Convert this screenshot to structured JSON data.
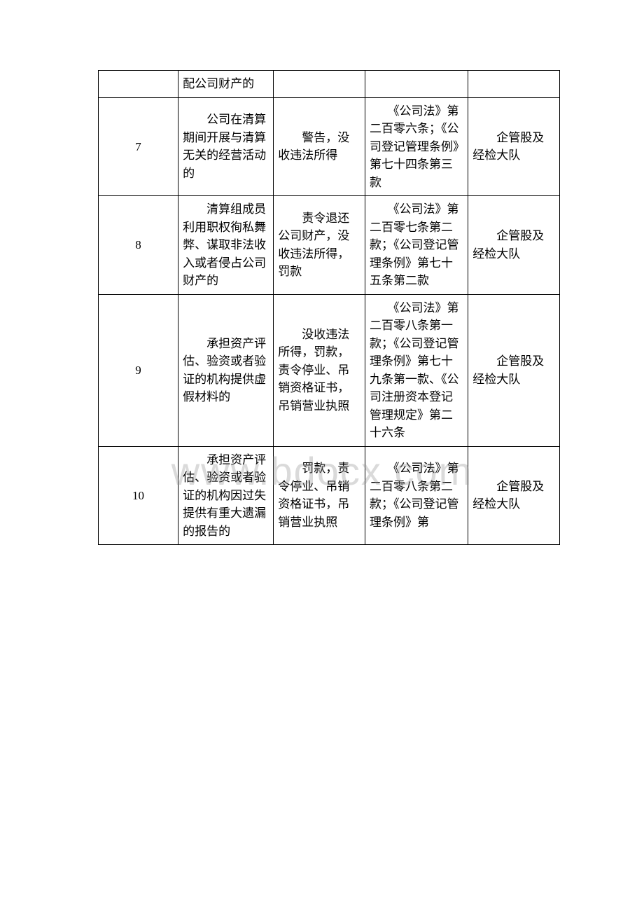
{
  "watermark": "www.bdocx.com",
  "table": {
    "rows": [
      {
        "num": "",
        "act": "配公司财产的",
        "penalty": "",
        "basis": "",
        "dept": ""
      },
      {
        "num": "7",
        "act": "　　公司在清算期间开展与清算无关的经营活动的",
        "penalty": "　　警告，没收违法所得",
        "basis": "　　《公司法》第二百零六条；《公司登记管理条例》第七十四条第三款",
        "dept": "　　企管股及经检大队"
      },
      {
        "num": "8",
        "act": "　　清算组成员利用职权徇私舞弊、谋取非法收入或者侵占公司财产的",
        "penalty": "　　责令退还公司财产，没收违法所得，罚款",
        "basis": "　　《公司法》第二百零七条第二款；《公司登记管理条例》第七十五条第二款",
        "dept": "　　企管股及经检大队"
      },
      {
        "num": "9",
        "act": "　　承担资产评估、验资或者验证的机构提供虚假材料的",
        "penalty": "　　没收违法所得，罚款，责令停业、吊销资格证书，吊销营业执照",
        "basis": "　　《公司法》第二百零八条第一款；《公司登记管理条例》第七十九条第一款、《公司注册资本登记管理规定》第二十六条",
        "dept": "　　企管股及经检大队"
      },
      {
        "num": "10",
        "act": "　　承担资产评估、验资或者验证的机构因过失提供有重大遗漏的报告的",
        "penalty": "　　罚款，责令停业、吊销资格证书，吊销营业执照",
        "basis": "　　《公司法》第二百零八条第二款；《公司登记管理条例》第",
        "dept": "　　企管股及经检大队"
      }
    ]
  }
}
